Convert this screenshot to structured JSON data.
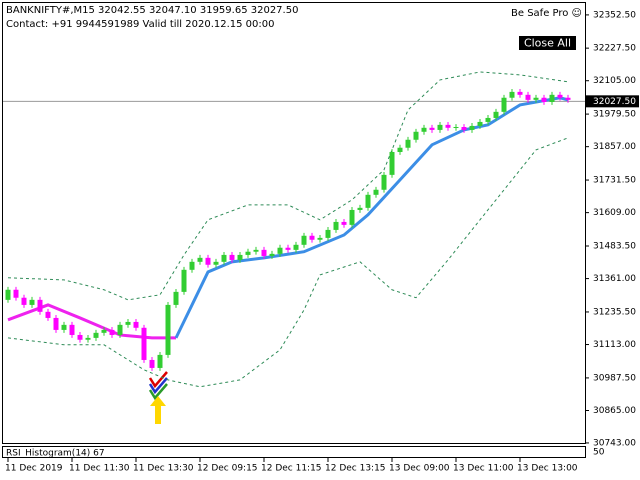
{
  "chart_data": {
    "type": "candlestick",
    "title": "BANKNIFTY#,M15  32042.55 32047.10 31959.65 32027.50",
    "subtitle": "Contact: +91 9944591989 Valid till 2020.12.15 00:00",
    "panel_label": "Be Safe Pro ☺",
    "button": "Close All",
    "up_color": "#32cd32",
    "down_color": "#ff00ff",
    "categories": [
      "11 Dec 2019",
      null,
      null,
      null,
      null,
      null,
      null,
      null,
      "11 Dec 11:30",
      null,
      null,
      null,
      null,
      null,
      null,
      null,
      "11 Dec 13:30",
      null,
      null,
      null,
      null,
      null,
      null,
      null,
      "12 Dec 09:15",
      null,
      null,
      null,
      null,
      null,
      null,
      null,
      "12 Dec 11:15",
      null,
      null,
      null,
      null,
      null,
      null,
      null,
      "12 Dec 13:15",
      null,
      null,
      null,
      null,
      null,
      null,
      null,
      "13 Dec 09:00",
      null,
      null,
      null,
      null,
      null,
      null,
      null,
      "13 Dec 11:00",
      null,
      null,
      null,
      null,
      null,
      null,
      null,
      "13 Dec 13:00",
      null,
      null,
      null,
      null,
      null,
      null
    ],
    "open": [
      31281,
      31319,
      31289,
      31262,
      31281,
      31236,
      31213,
      31168,
      31187,
      31149,
      31131,
      31138,
      31157,
      31168,
      31149,
      31187,
      31198,
      31176,
      31055,
      31025,
      31074,
      31262,
      31311,
      31394,
      31424,
      31439,
      31413,
      31424,
      31450,
      31431,
      31450,
      31462,
      31469,
      31446,
      31454,
      31477,
      31469,
      31488,
      31522,
      31507,
      31514,
      31544,
      31574,
      31563,
      31619,
      31627,
      31676,
      31695,
      31751,
      31837,
      31853,
      31883,
      31913,
      31928,
      31920,
      31939,
      31928,
      31931,
      31920,
      31935,
      31950,
      31965,
      31988,
      32041,
      32063,
      32052,
      32033,
      32041,
      32025,
      32052,
      32041
    ],
    "high": [
      31330,
      31330,
      31300,
      31292,
      31292,
      31247,
      31224,
      31198,
      31198,
      31160,
      31149,
      31168,
      31179,
      31179,
      31198,
      31209,
      31209,
      31187,
      31066,
      31085,
      31273,
      31322,
      31405,
      31435,
      31450,
      31450,
      31435,
      31461,
      31461,
      31461,
      31473,
      31480,
      31480,
      31465,
      31488,
      31488,
      31499,
      31533,
      31533,
      31525,
      31555,
      31585,
      31585,
      31630,
      31638,
      31687,
      31706,
      31762,
      31848,
      31864,
      31894,
      31924,
      31939,
      31939,
      31950,
      31950,
      31942,
      31942,
      31946,
      31961,
      31976,
      31999,
      32052,
      32074,
      32074,
      32063,
      32052,
      32052,
      32063,
      32063,
      32052
    ],
    "low": [
      31270,
      31278,
      31251,
      31251,
      31225,
      31202,
      31157,
      31157,
      31138,
      31120,
      31120,
      31127,
      31146,
      31138,
      31138,
      31176,
      31165,
      31044,
      31014,
      31014,
      31063,
      31251,
      31300,
      31383,
      31413,
      31402,
      31402,
      31413,
      31420,
      31420,
      31439,
      31451,
      31435,
      31435,
      31443,
      31458,
      31458,
      31477,
      31496,
      31496,
      31503,
      31533,
      31552,
      31552,
      31608,
      31616,
      31665,
      31684,
      31740,
      31826,
      31842,
      31872,
      31902,
      31909,
      31909,
      31917,
      31917,
      31909,
      31909,
      31924,
      31939,
      31954,
      31977,
      32030,
      32041,
      32022,
      32022,
      32014,
      32014,
      32030,
      32022
    ],
    "close": [
      31319,
      31289,
      31262,
      31281,
      31236,
      31213,
      31168,
      31187,
      31149,
      31131,
      31138,
      31157,
      31168,
      31149,
      31187,
      31198,
      31176,
      31055,
      31025,
      31074,
      31262,
      31311,
      31394,
      31424,
      31439,
      31413,
      31424,
      31450,
      31431,
      31450,
      31462,
      31469,
      31446,
      31454,
      31477,
      31469,
      31488,
      31522,
      31507,
      31514,
      31544,
      31574,
      31563,
      31619,
      31627,
      31676,
      31695,
      31751,
      31837,
      31853,
      31883,
      31913,
      31928,
      31920,
      31939,
      31928,
      31931,
      31920,
      31935,
      31950,
      31965,
      31988,
      32041,
      32063,
      32052,
      32033,
      32041,
      32025,
      32052,
      32041,
      32033
    ],
    "indicators": [
      {
        "color": "#ee22ee",
        "style": "solid",
        "width": 3,
        "x": [
          0,
          5,
          9,
          14,
          18,
          21
        ],
        "values": [
          31206,
          31262,
          31213,
          31149,
          31138,
          31138
        ]
      },
      {
        "color": "#3c8ee6",
        "style": "solid",
        "width": 3,
        "x": [
          21,
          23,
          25,
          28,
          32,
          37,
          42,
          45,
          49,
          53,
          57,
          60,
          64,
          69,
          70
        ],
        "values": [
          31138,
          31262,
          31386,
          31424,
          31439,
          31462,
          31525,
          31601,
          31732,
          31864,
          31920,
          31939,
          32014,
          32041,
          32033
        ]
      },
      {
        "color": "#2e8b57",
        "style": "dashed",
        "width": 1,
        "x": [
          0,
          7,
          12,
          15,
          19,
          22,
          25,
          30,
          35,
          39,
          43,
          47,
          50,
          54,
          59,
          64,
          70
        ],
        "values": [
          31364,
          31356,
          31319,
          31281,
          31300,
          31450,
          31582,
          31638,
          31638,
          31582,
          31657,
          31770,
          31995,
          32108,
          32138,
          32127,
          32101
        ]
      },
      {
        "color": "#2e8b57",
        "style": "dashed",
        "width": 1,
        "x": [
          0,
          7,
          12,
          17,
          20,
          24,
          29,
          34,
          37,
          39,
          44,
          48,
          51,
          55,
          59,
          63,
          66,
          70
        ],
        "values": [
          31138,
          31112,
          31112,
          31018,
          30980,
          30954,
          30980,
          31093,
          31243,
          31375,
          31424,
          31319,
          31289,
          31431,
          31582,
          31732,
          31845,
          31890
        ]
      }
    ],
    "price_line": {
      "value": 32027.5,
      "label": "32027.50"
    },
    "ylim": [
      30739,
      32401
    ],
    "yticks": [
      {
        "value": 32352.5,
        "label": "32352.50"
      },
      {
        "value": 32227.5,
        "label": "32227.50"
      },
      {
        "value": 32105,
        "label": "32105.00"
      },
      {
        "value": 31979.5,
        "label": "31979.50"
      },
      {
        "value": 31857,
        "label": "31857.00"
      },
      {
        "value": 31731.5,
        "label": "31731.50"
      },
      {
        "value": 31609,
        "label": "31609.00"
      },
      {
        "value": 31483.5,
        "label": "31483.50"
      },
      {
        "value": 31361,
        "label": "31361.00"
      },
      {
        "value": 31235.5,
        "label": "31235.50"
      },
      {
        "value": 31113,
        "label": "31113.00"
      },
      {
        "value": 30987.5,
        "label": "30987.50"
      },
      {
        "value": 30865,
        "label": "30865.00"
      },
      {
        "value": 30743,
        "label": "30743.00"
      }
    ],
    "sub_window": {
      "label": "RSI_Histogram(14) 67",
      "yticks": [
        50
      ]
    }
  }
}
